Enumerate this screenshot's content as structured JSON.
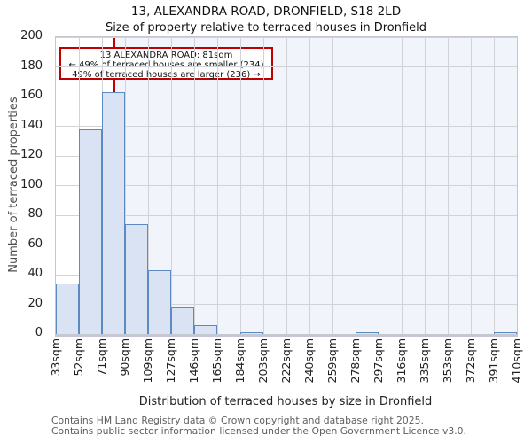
{
  "chart_data": {
    "type": "bar",
    "title": "13, ALEXANDRA ROAD, DRONFIELD, S18 2LD",
    "subtitle": "Size of property relative to terraced houses in Dronfield",
    "xlabel": "Distribution of terraced houses by size in Dronfield",
    "ylabel": "Number of terraced properties",
    "ylim": [
      0,
      200
    ],
    "ytick_step": 20,
    "grid": true,
    "categories": [
      "33sqm",
      "52sqm",
      "71sqm",
      "90sqm",
      "109sqm",
      "127sqm",
      "146sqm",
      "165sqm",
      "184sqm",
      "203sqm",
      "222sqm",
      "240sqm",
      "259sqm",
      "278sqm",
      "297sqm",
      "316sqm",
      "335sqm",
      "353sqm",
      "372sqm",
      "391sqm",
      "410sqm"
    ],
    "bin_edges_sqm": [
      33,
      52,
      71,
      90,
      109,
      127,
      146,
      165,
      184,
      203,
      222,
      240,
      259,
      278,
      297,
      316,
      335,
      353,
      372,
      391,
      410
    ],
    "values": [
      34,
      138,
      163,
      74,
      43,
      18,
      6,
      0,
      1,
      0,
      0,
      0,
      0,
      1,
      0,
      0,
      0,
      0,
      0,
      1
    ],
    "marker": {
      "sqm": 81,
      "label_line1": "13 ALEXANDRA ROAD: 81sqm",
      "label_line2": "← 49% of terraced houses are smaller (234)",
      "label_line3": "49% of terraced houses are larger (236) →"
    },
    "colors": {
      "bar_fill": "#d9e3f3",
      "bar_edge": "#5c8bc4",
      "marker_red": "#c00000",
      "region_shade": "#f1f5fb",
      "gridline": "#d2d3d7"
    }
  },
  "footer": {
    "line1": "Contains HM Land Registry data © Crown copyright and database right 2025.",
    "line2": "Contains public sector information licensed under the Open Government Licence v3.0."
  }
}
